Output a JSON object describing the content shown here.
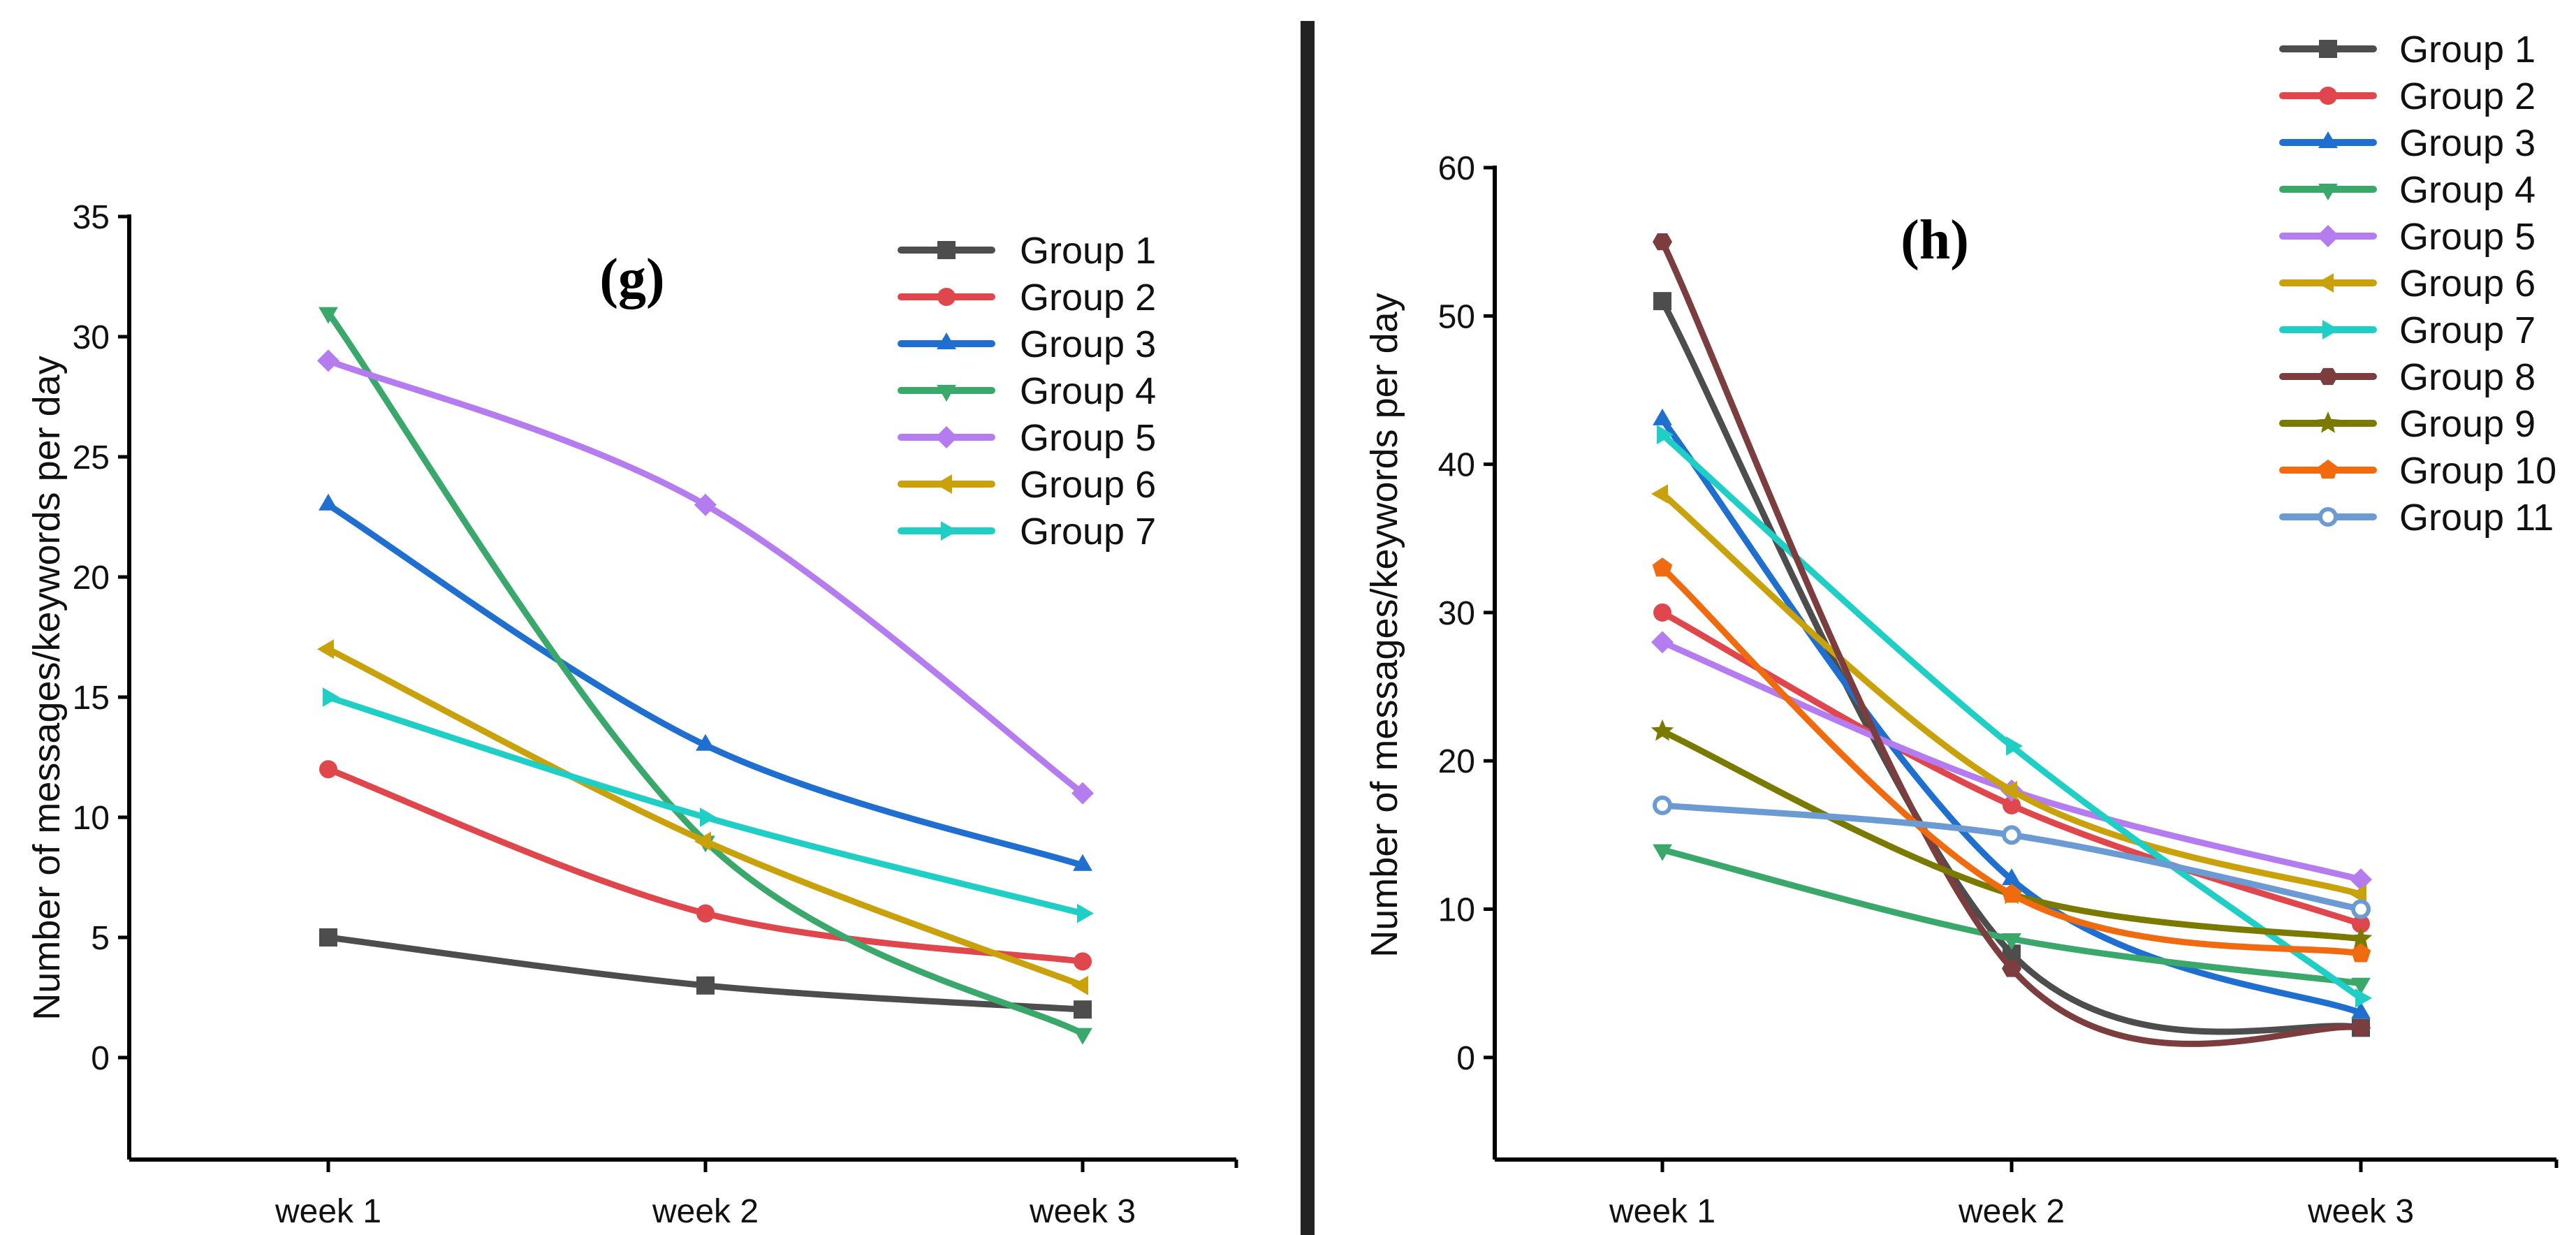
{
  "colors": {
    "Group 1": "#4d4d4d",
    "Group 2": "#e0474c",
    "Group 3": "#1f6fd1",
    "Group 4": "#3aa86b",
    "Group 5": "#b57cf0",
    "Group 6": "#c9a10a",
    "Group 7": "#1fcfc6",
    "Group 8": "#7b3d3d",
    "Group 9": "#7a7a00",
    "Group 10": "#f06a0f",
    "Group 11": "#6b9bd2"
  },
  "markers": {
    "Group 1": "square",
    "Group 2": "circle",
    "Group 3": "triangle-up",
    "Group 4": "triangle-down",
    "Group 5": "diamond",
    "Group 6": "triangle-left",
    "Group 7": "triangle-right",
    "Group 8": "hexagon",
    "Group 9": "star",
    "Group 10": "pentagon",
    "Group 11": "ring"
  },
  "chart_data": [
    {
      "type": "line",
      "panel": "(g)",
      "title": "",
      "xlabel": "",
      "ylabel": "Number of messages/keywords per day",
      "categories": [
        "week 1",
        "week 2",
        "week 3"
      ],
      "ylim": [
        -2.5,
        35
      ],
      "yticks": [
        0,
        5,
        10,
        15,
        20,
        25,
        30,
        35
      ],
      "legend": "top-right",
      "series": [
        {
          "name": "Group 1",
          "values": [
            5,
            3,
            2
          ]
        },
        {
          "name": "Group 2",
          "values": [
            12,
            6,
            4
          ]
        },
        {
          "name": "Group 3",
          "values": [
            23,
            13,
            8
          ]
        },
        {
          "name": "Group 4",
          "values": [
            31,
            9,
            1
          ]
        },
        {
          "name": "Group 5",
          "values": [
            29,
            23,
            11
          ]
        },
        {
          "name": "Group 6",
          "values": [
            17,
            9,
            3
          ]
        },
        {
          "name": "Group 7",
          "values": [
            15,
            10,
            6
          ]
        }
      ]
    },
    {
      "type": "line",
      "panel": "(h)",
      "title": "",
      "xlabel": "",
      "ylabel": "Number of messages/keywords per day",
      "categories": [
        "week 1",
        "week 2",
        "week 3"
      ],
      "ylim": [
        -5,
        60
      ],
      "yticks": [
        0,
        10,
        20,
        30,
        40,
        50,
        60
      ],
      "legend": "top-right",
      "series": [
        {
          "name": "Group 1",
          "values": [
            51,
            7,
            2
          ]
        },
        {
          "name": "Group 2",
          "values": [
            30,
            17,
            9
          ]
        },
        {
          "name": "Group 3",
          "values": [
            43,
            12,
            3
          ]
        },
        {
          "name": "Group 4",
          "values": [
            14,
            8,
            5
          ]
        },
        {
          "name": "Group 5",
          "values": [
            28,
            18,
            12
          ]
        },
        {
          "name": "Group 6",
          "values": [
            38,
            18,
            11
          ]
        },
        {
          "name": "Group 7",
          "values": [
            42,
            21,
            4
          ]
        },
        {
          "name": "Group 8",
          "values": [
            55,
            6,
            2
          ]
        },
        {
          "name": "Group 9",
          "values": [
            22,
            11,
            8
          ]
        },
        {
          "name": "Group 10",
          "values": [
            33,
            11,
            7
          ]
        },
        {
          "name": "Group 11",
          "values": [
            17,
            15,
            10
          ]
        }
      ]
    }
  ]
}
